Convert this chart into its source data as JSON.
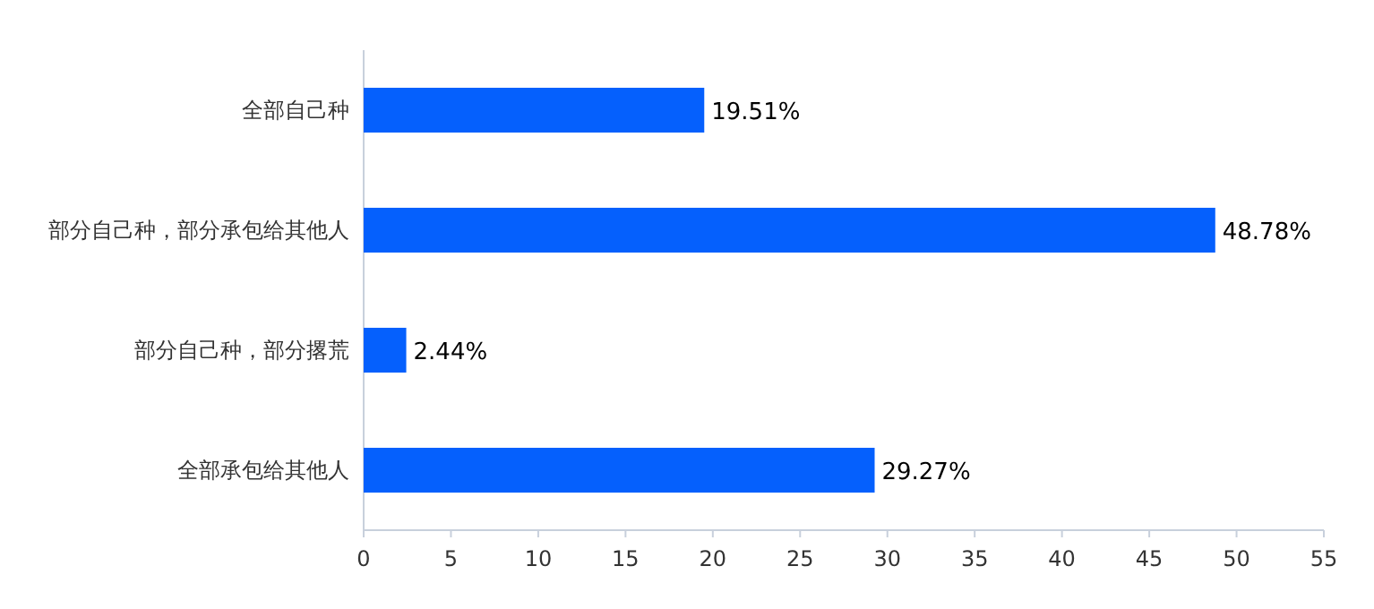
{
  "chart_data": {
    "type": "bar",
    "orientation": "horizontal",
    "categories": [
      "全部自己种",
      "部分自己种，部分承包给其他人",
      "部分自己种，部分撂荒",
      "全部承包给其他人"
    ],
    "values": [
      19.51,
      48.78,
      2.44,
      29.27
    ],
    "value_labels": [
      "19.51%",
      "48.78%",
      "2.44%",
      "29.27%"
    ],
    "color": "#0560fd",
    "xlim": [
      0,
      55
    ],
    "xticks": [
      0,
      5,
      10,
      15,
      20,
      25,
      30,
      35,
      40,
      45,
      50,
      55
    ]
  }
}
